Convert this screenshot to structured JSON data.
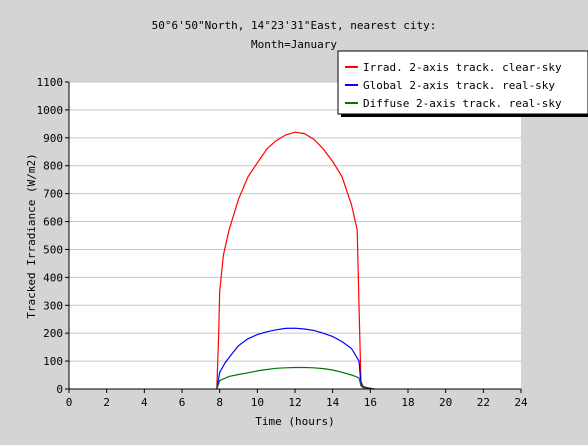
{
  "chart_data": {
    "type": "line",
    "title_lines": [
      "50°6'50\"North, 14°23'31\"East, nearest city:",
      "Month=January"
    ],
    "xlabel": "Time (hours)",
    "ylabel": "Tracked Irradiance (W/m2)",
    "xlim": [
      0,
      24
    ],
    "ylim": [
      0,
      1100
    ],
    "x_ticks": [
      0,
      2,
      4,
      6,
      8,
      10,
      12,
      14,
      16,
      18,
      20,
      22,
      24
    ],
    "y_ticks": [
      0,
      100,
      200,
      300,
      400,
      500,
      600,
      700,
      800,
      900,
      1000,
      1100
    ],
    "grid": "horizontal",
    "legend_position": "top-right",
    "series": [
      {
        "name": "Irrad. 2-axis track. clear-sky",
        "color": "#ff0000",
        "x": [
          7.85,
          7.95,
          8.0,
          8.2,
          8.5,
          9.0,
          9.5,
          10.0,
          10.5,
          11.0,
          11.5,
          12.0,
          12.5,
          13.0,
          13.5,
          14.0,
          14.5,
          15.0,
          15.3,
          15.4,
          15.5,
          15.6,
          15.8,
          16.0,
          16.2
        ],
        "y": [
          0,
          200,
          350,
          480,
          570,
          680,
          760,
          810,
          860,
          890,
          910,
          920,
          915,
          895,
          860,
          815,
          760,
          660,
          570,
          300,
          30,
          10,
          5,
          2,
          0
        ]
      },
      {
        "name": "Global 2-axis track. real-sky",
        "color": "#0000ff",
        "x": [
          7.85,
          8.0,
          8.3,
          8.7,
          9.0,
          9.5,
          10.0,
          10.5,
          11.0,
          11.5,
          12.0,
          12.5,
          13.0,
          13.5,
          14.0,
          14.5,
          15.0,
          15.4,
          15.5,
          15.6,
          16.0,
          16.2
        ],
        "y": [
          0,
          60,
          95,
          130,
          155,
          180,
          195,
          205,
          212,
          217,
          218,
          215,
          210,
          200,
          188,
          170,
          145,
          100,
          20,
          8,
          3,
          0
        ]
      },
      {
        "name": "Diffuse 2-axis track. real-sky",
        "color": "#007700",
        "x": [
          7.85,
          8.0,
          8.5,
          9.0,
          9.5,
          10.0,
          10.5,
          11.0,
          11.5,
          12.0,
          12.5,
          13.0,
          13.5,
          14.0,
          14.5,
          15.0,
          15.4,
          15.5,
          15.6,
          16.0,
          16.2
        ],
        "y": [
          0,
          30,
          45,
          52,
          58,
          65,
          70,
          74,
          76,
          77,
          77,
          76,
          73,
          68,
          60,
          50,
          40,
          12,
          5,
          2,
          0
        ]
      }
    ]
  }
}
